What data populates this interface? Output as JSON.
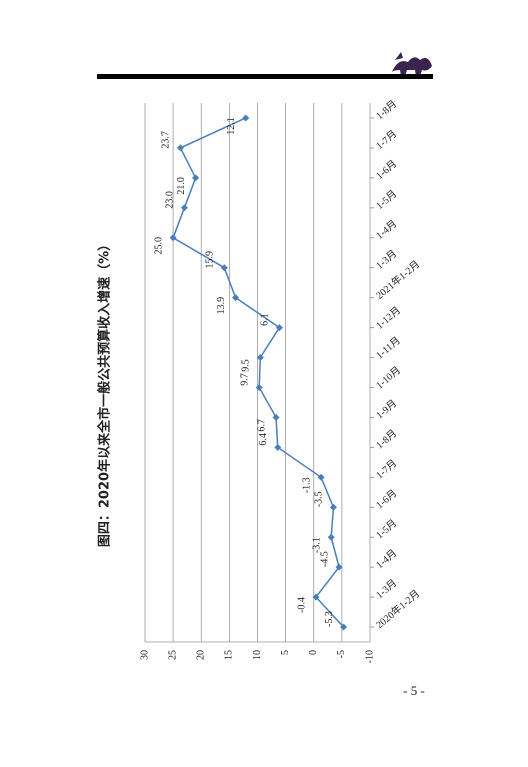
{
  "page_number": "- 5 -",
  "chart_data": {
    "type": "line",
    "title": "图四：2020年以来全市一般公共预算收入增速（%）",
    "categories": [
      "2020年1-2月",
      "1-3月",
      "1-4月",
      "1-5月",
      "1-6月",
      "1-7月",
      "1-8月",
      "1-9月",
      "1-10月",
      "1-11月",
      "1-12月",
      "2021年1-2月",
      "1-3月",
      "1-4月",
      "1-5月",
      "1-6月",
      "1-7月",
      "1-8月"
    ],
    "values": [
      -5.3,
      -0.4,
      -4.5,
      -3.1,
      -3.5,
      -1.3,
      6.4,
      6.7,
      9.7,
      9.5,
      6.1,
      13.9,
      15.9,
      25.0,
      23.0,
      21.0,
      23.7,
      12.1
    ],
    "value_labels": [
      "-5.3",
      "-0.4",
      "-4.5",
      "-3.1",
      "-3.5",
      "-1.3",
      "6.4",
      "6.7",
      "9.7",
      "9.5",
      "6.1",
      "13.9",
      "15.9",
      "25.0",
      "23.0",
      "21.0",
      "23.7",
      "12.1"
    ],
    "color": "#4a7ebb",
    "ylim": [
      -10,
      30
    ],
    "yticks": [
      -10,
      -5,
      0,
      5,
      10,
      15,
      20,
      25,
      30
    ],
    "grid": true
  }
}
